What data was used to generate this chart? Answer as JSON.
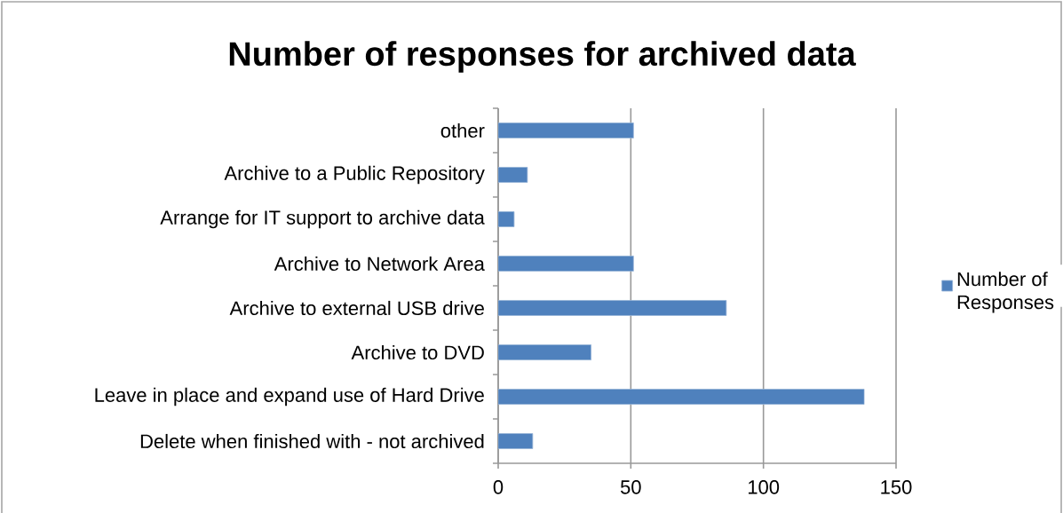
{
  "chart_data": {
    "type": "bar",
    "orientation": "horizontal",
    "title": "Number of responses for archived data",
    "categories": [
      "other",
      "Archive to a Public Repository",
      "Arrange for IT support to archive data",
      "Archive to Network Area",
      "Archive to external USB drive",
      "Archive to DVD",
      "Leave in place and expand use of Hard Drive",
      "Delete when finished with - not archived"
    ],
    "series": [
      {
        "name": "Number of Responses",
        "color": "#4f81bd",
        "values": [
          51,
          11,
          6,
          51,
          86,
          35,
          138,
          13
        ]
      }
    ],
    "xlim": [
      0,
      150
    ],
    "xticks": [
      0,
      50,
      100,
      150
    ],
    "grid": "x",
    "legend": "right"
  }
}
